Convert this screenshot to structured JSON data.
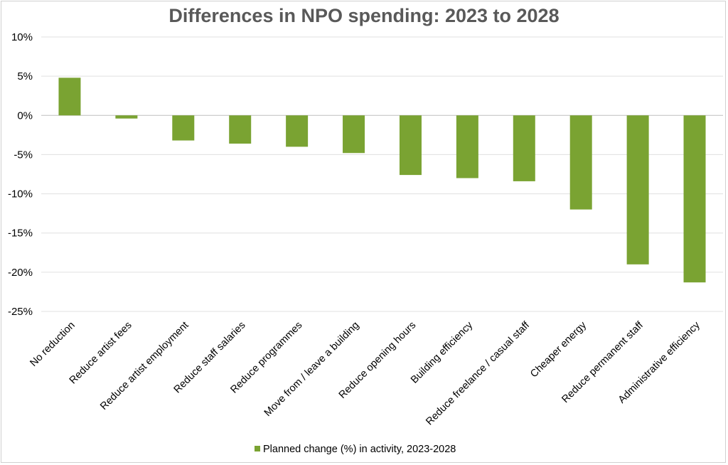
{
  "chart_data": {
    "type": "bar",
    "title": "Differences in NPO spending: 2023 to 2028",
    "xlabel": "",
    "ylabel": "",
    "ylim": [
      -25,
      10
    ],
    "yticks": [
      10,
      5,
      0,
      -5,
      -10,
      -15,
      -20,
      -25
    ],
    "ytick_labels": [
      "10%",
      "5%",
      "0%",
      "-5%",
      "-10%",
      "-15%",
      "-20%",
      "-25%"
    ],
    "grid": true,
    "legend_position": "bottom",
    "categories": [
      "No reduction",
      "Reduce artist fees",
      "Reduce artist employment",
      "Reduce staff salaries",
      "Reduce programmes",
      "Move from / leave a building",
      "Reduce opening hours",
      "Building efficiency",
      "Reduce freelance / casual staff",
      "Cheaper energy",
      "Reduce permanent staff",
      "Administrative efficiency"
    ],
    "series": [
      {
        "name": "Planned change (%) in activity, 2023-2028",
        "color": "#7aa332",
        "values": [
          4.8,
          -0.4,
          -3.2,
          -3.6,
          -4.0,
          -4.8,
          -7.6,
          -8.0,
          -8.4,
          -12.0,
          -19.0,
          -21.3
        ]
      }
    ]
  }
}
